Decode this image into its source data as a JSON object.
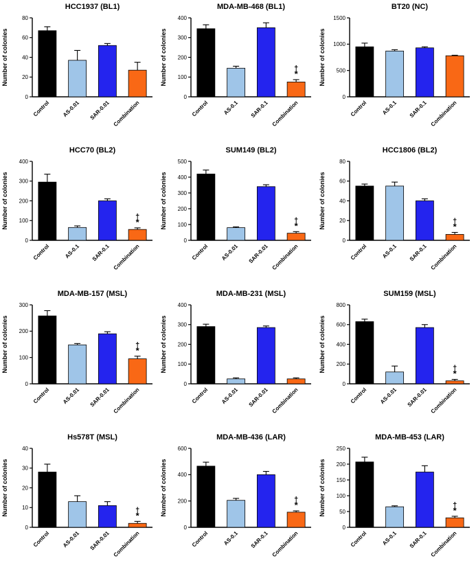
{
  "figure": {
    "ylabel": "Number of colonies",
    "annotation_symbols": {
      "dagger": "†",
      "asterisk": "*"
    },
    "palette": {
      "control": "#000000",
      "as": "#9FC5E8",
      "sar": "#2424EE",
      "combination": "#F96815"
    },
    "series_keys": [
      "control",
      "as",
      "sar",
      "combination"
    ]
  },
  "chart_data": [
    {
      "type": "bar",
      "title": "HCC1937 (BL1)",
      "categories": [
        "Control",
        "AS-0.01",
        "SAR-0.01",
        "Combination"
      ],
      "values": [
        67,
        37,
        52,
        27
      ],
      "errors": [
        4,
        10,
        2,
        8
      ],
      "ylabel": "Number of colonies",
      "ylim": [
        0,
        80
      ],
      "ytick_step": 20,
      "combination_marked": false
    },
    {
      "type": "bar",
      "title": "MDA-MB-468 (BL1)",
      "categories": [
        "Control",
        "AS-0.1",
        "SAR-0.1",
        "Combination"
      ],
      "values": [
        345,
        145,
        350,
        75
      ],
      "errors": [
        20,
        10,
        25,
        12
      ],
      "ylabel": "Number of colonies",
      "ylim": [
        0,
        400
      ],
      "ytick_step": 100,
      "combination_marked": true
    },
    {
      "type": "bar",
      "title": "BT20 (NC)",
      "categories": [
        "Control",
        "AS-0.1",
        "SAR-0.1",
        "Combination"
      ],
      "values": [
        950,
        870,
        930,
        780
      ],
      "errors": [
        70,
        25,
        20,
        10
      ],
      "ylabel": "Number of colonies",
      "ylim": [
        0,
        1500
      ],
      "ytick_step": 500,
      "combination_marked": false
    },
    {
      "type": "bar",
      "title": "HCC70 (BL2)",
      "categories": [
        "Control",
        "AS-0.1",
        "SAR-0.1",
        "Combination"
      ],
      "values": [
        295,
        65,
        200,
        55
      ],
      "errors": [
        40,
        8,
        10,
        8
      ],
      "ylabel": "Number of colonies",
      "ylim": [
        0,
        400
      ],
      "ytick_step": 100,
      "combination_marked": true
    },
    {
      "type": "bar",
      "title": "SUM149 (BL2)",
      "categories": [
        "Control",
        "AS-0.01",
        "SAR-0.01",
        "Combination"
      ],
      "values": [
        420,
        80,
        340,
        45
      ],
      "errors": [
        25,
        5,
        12,
        10
      ],
      "ylabel": "Number of colonies",
      "ylim": [
        0,
        500
      ],
      "ytick_step": 100,
      "combination_marked": true
    },
    {
      "type": "bar",
      "title": "HCC1806 (BL2)",
      "categories": [
        "Control",
        "AS-0.1",
        "SAR-0.1",
        "Combination"
      ],
      "values": [
        55,
        55,
        40,
        6
      ],
      "errors": [
        2,
        4,
        2,
        2
      ],
      "ylabel": "Number of colonies",
      "ylim": [
        0,
        80
      ],
      "ytick_step": 20,
      "combination_marked": true
    },
    {
      "type": "bar",
      "title": "MDA-MB-157 (MSL)",
      "categories": [
        "Control",
        "AS-0.01",
        "SAR-0.01",
        "Combination"
      ],
      "values": [
        258,
        148,
        190,
        95
      ],
      "errors": [
        20,
        5,
        8,
        10
      ],
      "ylabel": "Number of colonies",
      "ylim": [
        0,
        300
      ],
      "ytick_step": 100,
      "combination_marked": true
    },
    {
      "type": "bar",
      "title": "MDA-MB-231 (MSL)",
      "categories": [
        "Control",
        "AS-0.01",
        "SAR-0.01",
        "Combination"
      ],
      "values": [
        290,
        25,
        285,
        25
      ],
      "errors": [
        12,
        5,
        8,
        5
      ],
      "ylabel": "Number of colonies",
      "ylim": [
        0,
        400
      ],
      "ytick_step": 100,
      "combination_marked": false
    },
    {
      "type": "bar",
      "title": "SUM159 (MSL)",
      "categories": [
        "Control",
        "AS-0.01",
        "SAR-0.01",
        "Combination"
      ],
      "values": [
        630,
        120,
        570,
        30
      ],
      "errors": [
        25,
        60,
        30,
        15
      ],
      "ylabel": "Number of colonies",
      "ylim": [
        0,
        800
      ],
      "ytick_step": 200,
      "combination_marked": true
    },
    {
      "type": "bar",
      "title": "Hs578T (MSL)",
      "categories": [
        "Control",
        "AS-0.01",
        "SAR-0.01",
        "Combination"
      ],
      "values": [
        28,
        13,
        11,
        2
      ],
      "errors": [
        4,
        3,
        2,
        1
      ],
      "ylabel": "Number of colonies",
      "ylim": [
        0,
        40
      ],
      "ytick_step": 10,
      "combination_marked": true
    },
    {
      "type": "bar",
      "title": "MDA-MB-436 (LAR)",
      "categories": [
        "Control",
        "AS-0.1",
        "SAR-0.1",
        "Combination"
      ],
      "values": [
        465,
        205,
        400,
        115
      ],
      "errors": [
        30,
        15,
        25,
        10
      ],
      "ylabel": "Number of colonies",
      "ylim": [
        0,
        600
      ],
      "ytick_step": 200,
      "combination_marked": true
    },
    {
      "type": "bar",
      "title": "MDA-MB-453 (LAR)",
      "categories": [
        "Control",
        "AS-0.1",
        "SAR-0.1",
        "Combination"
      ],
      "values": [
        207,
        65,
        175,
        30
      ],
      "errors": [
        15,
        3,
        20,
        5
      ],
      "ylabel": "Number of colonies",
      "ylim": [
        0,
        250
      ],
      "ytick_step": 50,
      "combination_marked": true
    }
  ]
}
